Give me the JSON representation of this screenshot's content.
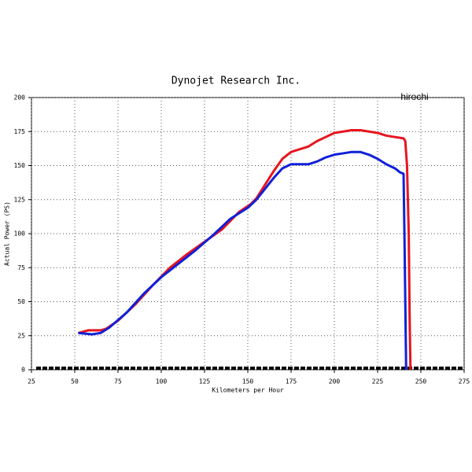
{
  "chart_data": {
    "type": "line",
    "title": "Dynojet  Research  Inc.",
    "annotation": "hirochi",
    "x_label": "Kilometers per Hour",
    "y_label": "Actual Power (PS)",
    "xlim": [
      25,
      275
    ],
    "ylim": [
      0,
      200
    ],
    "xticks": [
      25,
      50,
      75,
      100,
      125,
      150,
      175,
      200,
      225,
      250,
      275
    ],
    "yticks": [
      0,
      25,
      50,
      75,
      100,
      125,
      150,
      175,
      200
    ],
    "grid": true,
    "series": [
      {
        "color": "#e8141e",
        "x": [
          52,
          58,
          65,
          68,
          75,
          85,
          95,
          105,
          115,
          125,
          135,
          145,
          152,
          155,
          160,
          165,
          170,
          175,
          180,
          185,
          190,
          195,
          200,
          205,
          210,
          215,
          220,
          225,
          230,
          235,
          240,
          241,
          242,
          243,
          243.5,
          244
        ],
        "values": [
          27,
          29,
          29,
          30,
          36,
          48,
          62,
          75,
          85,
          94,
          103,
          116,
          122,
          126,
          136,
          146,
          155,
          160,
          162,
          164,
          168,
          171,
          174,
          175,
          176,
          176,
          175,
          174,
          172,
          171,
          170,
          168,
          150,
          100,
          40,
          0
        ]
      },
      {
        "color": "#1020d8",
        "x": [
          52,
          60,
          65,
          70,
          80,
          90,
          100,
          110,
          120,
          130,
          140,
          150,
          155,
          160,
          165,
          170,
          175,
          180,
          185,
          190,
          195,
          200,
          205,
          210,
          215,
          220,
          225,
          230,
          235,
          238,
          240,
          240.5,
          241,
          241.5
        ],
        "values": [
          27,
          26,
          27,
          31,
          42,
          56,
          68,
          78,
          88,
          99,
          111,
          119,
          125,
          133,
          141,
          148,
          151,
          151,
          151,
          153,
          156,
          158,
          159,
          160,
          160,
          158,
          155,
          151,
          148,
          145,
          144,
          100,
          50,
          0
        ]
      }
    ]
  }
}
